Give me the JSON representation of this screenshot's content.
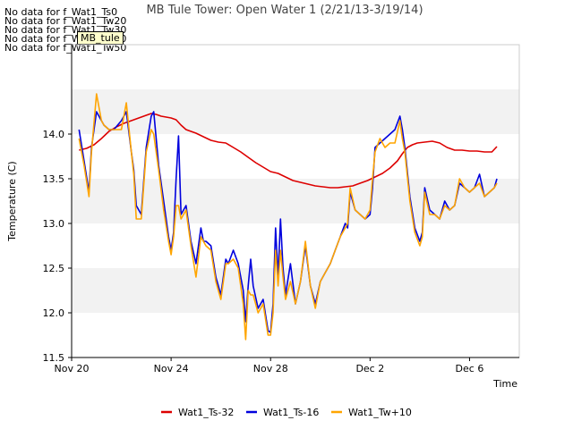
{
  "chart_data": {
    "type": "line",
    "title": "MB Tule Tower: Open Water 1 (2/21/13-3/19/14)",
    "xlabel": "Time",
    "ylabel": "Temperature (C)",
    "xlim": [
      0,
      18
    ],
    "ylim": [
      11.5,
      15.0
    ],
    "x_ticks": [
      {
        "value": 0,
        "label": "Nov 20"
      },
      {
        "value": 4,
        "label": "Nov 24"
      },
      {
        "value": 8,
        "label": "Nov 28"
      },
      {
        "value": 12,
        "label": "Dec 2"
      },
      {
        "value": 16,
        "label": "Dec 6"
      }
    ],
    "y_ticks": [
      11.5,
      12.0,
      12.5,
      13.0,
      13.5,
      14.0
    ],
    "y_tick_labels": [
      "11.5",
      "12.0",
      "12.5",
      "13.0",
      "13.5",
      "14.0"
    ],
    "grid": "alternating horizontal bands",
    "legend_position": "bottom-center",
    "no_data_messages": [
      "No data for f_Wat1_Ts0",
      "No data for f_Wat1_Tw20",
      "No data for f_Wat1_Tw30",
      "No data for f_Wat1_Tw40",
      "No data for f_Wat1_Tw50"
    ],
    "tooltip_label": "MB_tule",
    "series": [
      {
        "name": "Wat1_Ts-32",
        "color": "#dd0000",
        "x": [
          0.3,
          0.6,
          0.9,
          1.2,
          1.5,
          1.8,
          2.1,
          2.4,
          2.7,
          3.0,
          3.2,
          3.4,
          3.6,
          3.8,
          4.0,
          4.2,
          4.4,
          4.6,
          4.8,
          5.0,
          5.3,
          5.6,
          5.9,
          6.2,
          6.5,
          6.8,
          7.1,
          7.4,
          7.7,
          8.0,
          8.3,
          8.6,
          8.9,
          9.2,
          9.5,
          9.8,
          10.1,
          10.4,
          10.7,
          11.0,
          11.3,
          11.6,
          11.9,
          12.2,
          12.5,
          12.8,
          13.1,
          13.3,
          13.5,
          13.7,
          13.9,
          14.2,
          14.5,
          14.8,
          15.1,
          15.4,
          15.7,
          16.0,
          16.3,
          16.6,
          16.9,
          17.1
        ],
        "values": [
          13.82,
          13.84,
          13.88,
          13.95,
          14.03,
          14.08,
          14.12,
          14.15,
          14.18,
          14.21,
          14.23,
          14.22,
          14.2,
          14.19,
          14.18,
          14.16,
          14.1,
          14.05,
          14.03,
          14.01,
          13.97,
          13.93,
          13.91,
          13.9,
          13.85,
          13.8,
          13.74,
          13.68,
          13.63,
          13.58,
          13.56,
          13.52,
          13.48,
          13.46,
          13.44,
          13.42,
          13.41,
          13.4,
          13.4,
          13.41,
          13.42,
          13.45,
          13.48,
          13.52,
          13.56,
          13.62,
          13.7,
          13.78,
          13.85,
          13.88,
          13.9,
          13.91,
          13.92,
          13.9,
          13.85,
          13.82,
          13.82,
          13.81,
          13.81,
          13.8,
          13.8,
          13.86
        ]
      },
      {
        "name": "Wat1_Ts-16",
        "color": "#0000dd",
        "x": [
          0.3,
          0.5,
          0.7,
          0.8,
          1.0,
          1.2,
          1.3,
          1.5,
          1.7,
          2.0,
          2.2,
          2.4,
          2.5,
          2.6,
          2.8,
          3.0,
          3.2,
          3.3,
          3.5,
          3.7,
          3.9,
          4.0,
          4.1,
          4.2,
          4.3,
          4.4,
          4.6,
          4.8,
          5.0,
          5.2,
          5.3,
          5.4,
          5.6,
          5.8,
          6.0,
          6.2,
          6.3,
          6.5,
          6.7,
          6.9,
          7.0,
          7.1,
          7.2,
          7.3,
          7.5,
          7.7,
          7.9,
          8.0,
          8.1,
          8.2,
          8.3,
          8.4,
          8.5,
          8.6,
          8.8,
          9.0,
          9.2,
          9.4,
          9.6,
          9.8,
          10.0,
          10.2,
          10.4,
          10.6,
          10.8,
          11.0,
          11.1,
          11.2,
          11.4,
          11.6,
          11.8,
          12.0,
          12.1,
          12.2,
          12.4,
          12.6,
          12.8,
          13.0,
          13.2,
          13.3,
          13.4,
          13.6,
          13.8,
          14.0,
          14.1,
          14.2,
          14.4,
          14.6,
          14.8,
          15.0,
          15.2,
          15.4,
          15.6,
          15.8,
          16.0,
          16.2,
          16.4,
          16.6,
          16.8,
          17.0,
          17.1
        ],
        "values": [
          14.05,
          13.7,
          13.35,
          13.85,
          14.25,
          14.15,
          14.1,
          14.05,
          14.05,
          14.15,
          14.25,
          13.8,
          13.6,
          13.2,
          13.1,
          13.85,
          14.2,
          14.25,
          13.65,
          13.25,
          12.85,
          12.7,
          12.9,
          13.5,
          13.98,
          13.1,
          13.2,
          12.8,
          12.55,
          12.95,
          12.8,
          12.8,
          12.75,
          12.4,
          12.2,
          12.6,
          12.55,
          12.7,
          12.55,
          12.25,
          11.9,
          12.3,
          12.6,
          12.3,
          12.05,
          12.15,
          11.8,
          11.78,
          12.1,
          12.95,
          12.4,
          13.05,
          12.5,
          12.2,
          12.55,
          12.1,
          12.35,
          12.75,
          12.3,
          12.1,
          12.35,
          12.45,
          12.55,
          12.7,
          12.85,
          13.0,
          12.95,
          13.35,
          13.15,
          13.1,
          13.05,
          13.1,
          13.4,
          13.85,
          13.9,
          13.95,
          14.0,
          14.05,
          14.2,
          14.05,
          13.85,
          13.3,
          12.95,
          12.8,
          12.9,
          13.4,
          13.15,
          13.1,
          13.05,
          13.25,
          13.15,
          13.2,
          13.45,
          13.4,
          13.35,
          13.4,
          13.55,
          13.3,
          13.35,
          13.4,
          13.5
        ]
      },
      {
        "name": "Wat1_Tw+10",
        "color": "#ffa500",
        "x": [
          0.3,
          0.5,
          0.7,
          0.8,
          1.0,
          1.2,
          1.3,
          1.5,
          1.7,
          2.0,
          2.2,
          2.4,
          2.5,
          2.6,
          2.8,
          3.0,
          3.2,
          3.3,
          3.5,
          3.7,
          3.9,
          4.0,
          4.1,
          4.2,
          4.3,
          4.4,
          4.6,
          4.8,
          5.0,
          5.2,
          5.3,
          5.4,
          5.6,
          5.8,
          6.0,
          6.2,
          6.3,
          6.5,
          6.7,
          6.9,
          7.0,
          7.1,
          7.2,
          7.3,
          7.5,
          7.7,
          7.9,
          8.0,
          8.1,
          8.2,
          8.3,
          8.4,
          8.5,
          8.6,
          8.8,
          9.0,
          9.2,
          9.4,
          9.6,
          9.8,
          10.0,
          10.2,
          10.4,
          10.6,
          10.8,
          11.0,
          11.1,
          11.2,
          11.4,
          11.6,
          11.8,
          12.0,
          12.1,
          12.2,
          12.4,
          12.6,
          12.8,
          13.0,
          13.2,
          13.3,
          13.4,
          13.6,
          13.8,
          14.0,
          14.1,
          14.2,
          14.4,
          14.6,
          14.8,
          15.0,
          15.2,
          15.4,
          15.6,
          15.8,
          16.0,
          16.2,
          16.4,
          16.6,
          16.8,
          17.0,
          17.1
        ],
        "values": [
          13.95,
          13.65,
          13.3,
          13.8,
          14.45,
          14.15,
          14.1,
          14.05,
          14.05,
          14.05,
          14.35,
          13.8,
          13.55,
          13.05,
          13.05,
          13.8,
          14.05,
          14.0,
          13.6,
          13.15,
          12.8,
          12.65,
          12.85,
          13.2,
          13.2,
          13.05,
          13.15,
          12.75,
          12.4,
          12.85,
          12.8,
          12.75,
          12.7,
          12.35,
          12.15,
          12.55,
          12.55,
          12.6,
          12.5,
          12.1,
          11.7,
          12.25,
          12.2,
          12.2,
          12.0,
          12.1,
          11.75,
          11.75,
          12.0,
          12.7,
          12.3,
          12.7,
          12.4,
          12.15,
          12.35,
          12.1,
          12.35,
          12.8,
          12.3,
          12.05,
          12.35,
          12.45,
          12.55,
          12.7,
          12.85,
          12.95,
          13.0,
          13.4,
          13.15,
          13.1,
          13.05,
          13.15,
          13.5,
          13.8,
          13.95,
          13.85,
          13.9,
          13.9,
          14.15,
          13.95,
          13.8,
          13.25,
          12.9,
          12.75,
          12.85,
          13.35,
          13.1,
          13.1,
          13.05,
          13.2,
          13.15,
          13.2,
          13.5,
          13.4,
          13.35,
          13.4,
          13.45,
          13.3,
          13.35,
          13.4,
          13.45
        ]
      }
    ]
  }
}
